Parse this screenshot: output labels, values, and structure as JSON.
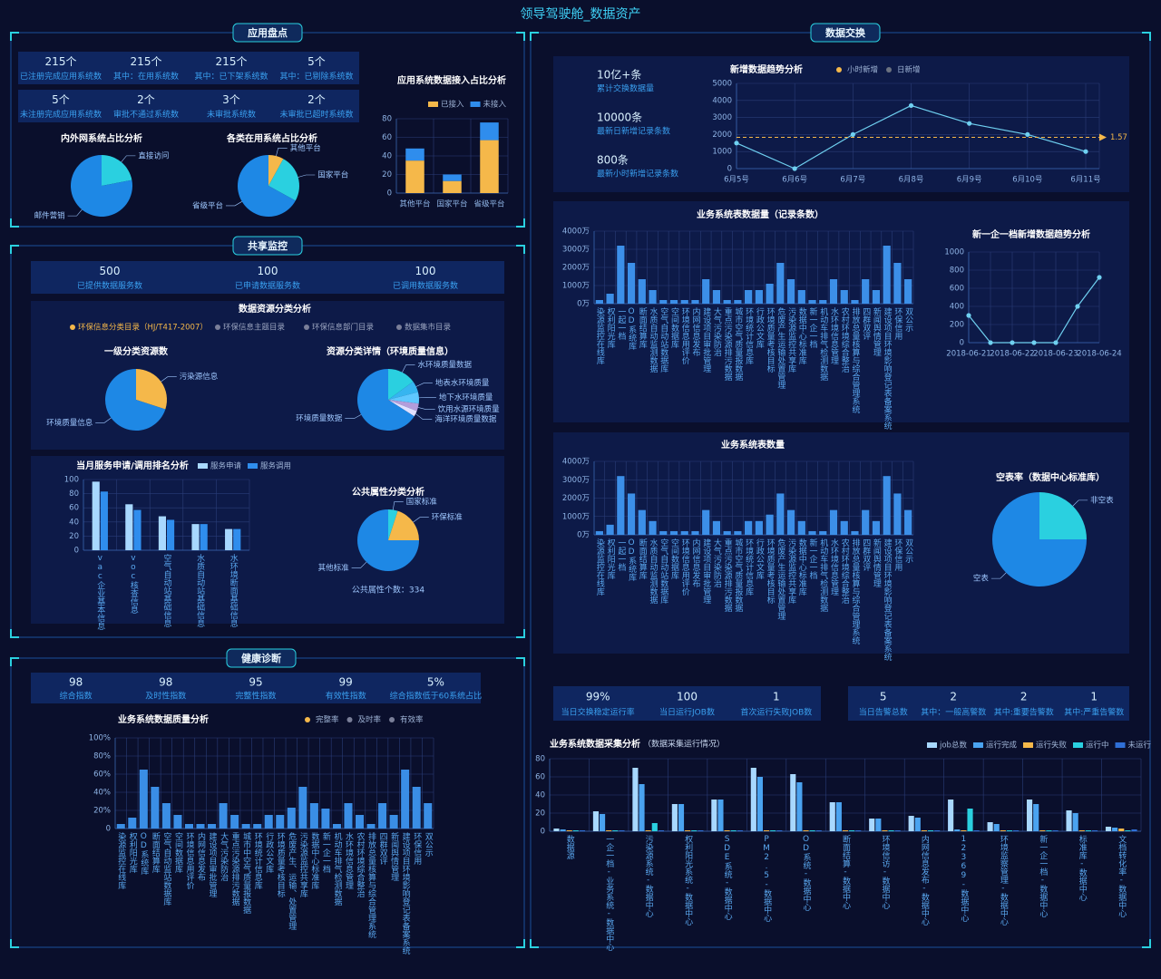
{
  "header": {
    "title": "领导驾驶舱_数据资产"
  },
  "sections": [
    {
      "title": "应用盘点"
    },
    {
      "title": "共享监控"
    },
    {
      "title": "健康诊断"
    },
    {
      "title": "数据交换"
    }
  ],
  "stats": [
    {
      "items": [
        {
          "value": "215个",
          "label": "已注册完成应用系统数"
        },
        {
          "value": "215个",
          "label": "其中：在用系统数"
        },
        {
          "value": "215个",
          "label": "其中：已下架系统数"
        },
        {
          "value": "5个",
          "label": "其中：已剔除系统数"
        }
      ]
    },
    {
      "items": [
        {
          "value": "5个",
          "label": "未注册完成应用系统数"
        },
        {
          "value": "2个",
          "label": "审批不通过系统数"
        },
        {
          "value": "3个",
          "label": "未审批系统数"
        },
        {
          "value": "2个",
          "label": "未审批已超时系统数"
        }
      ]
    },
    {
      "items": [
        {
          "value": "500",
          "label": "已提供数据服务数"
        },
        {
          "value": "100",
          "label": "已申请数据服务数"
        },
        {
          "value": "100",
          "label": "已调用数据服务数"
        }
      ]
    },
    {
      "items": [
        {
          "value": "98",
          "label": "综合指数"
        },
        {
          "value": "98",
          "label": "及时性指数"
        },
        {
          "value": "95",
          "label": "完整性指数"
        },
        {
          "value": "99",
          "label": "有效性指数"
        },
        {
          "value": "5%",
          "label": "综合指数低于60系统占比"
        }
      ]
    },
    {
      "items": [
        {
          "value": "10亿+条",
          "label": "累计交换数据量"
        },
        {
          "value": "10000条",
          "label": "最新日新增记录条数"
        },
        {
          "value": "800条",
          "label": "最新小时新增记录条数"
        }
      ]
    },
    {
      "items": [
        {
          "value": "99%",
          "label": "当日交换稳定运行率"
        },
        {
          "value": "100",
          "label": "当日运行JOB数"
        },
        {
          "value": "1",
          "label": "首次运行失败JOB数"
        }
      ]
    },
    {
      "items": [
        {
          "value": "5",
          "label": "当日告警总数"
        },
        {
          "value": "2",
          "label": "其中：一般高警数"
        },
        {
          "value": "2",
          "label": "其中:重要告警数"
        },
        {
          "value": "1",
          "label": "其中:严重告警数"
        }
      ]
    }
  ],
  "resource_panel": {
    "title": "数据资源分类分析",
    "tabs": [
      "环保信息分类目录（HJ/T417-2007）",
      "环保信息主题目录",
      "环保信息部门目录",
      "数据集市目录"
    ]
  },
  "chart_data": [
    {
      "type": "pie",
      "title": "内外网系统占比分析",
      "categories": [
        "直接访问",
        "邮件营销"
      ],
      "values": [
        22,
        78
      ],
      "colors": [
        "#2ad0e0",
        "#1e88e5"
      ]
    },
    {
      "type": "pie",
      "title": "各类在用系统占比分析",
      "categories": [
        "其他平台",
        "国家平台",
        "省级平台"
      ],
      "values": [
        8,
        25,
        67
      ],
      "colors": [
        "#f5b84a",
        "#2ad0e0",
        "#1e88e5"
      ]
    },
    {
      "type": "bar",
      "stacked": true,
      "title": "应用系统数据接入占比分析",
      "categories": [
        "其他平台",
        "国家平台",
        "省级平台"
      ],
      "series": [
        {
          "name": "已接入",
          "color": "#f5b84a",
          "values": [
            35,
            13,
            57
          ]
        },
        {
          "name": "未接入",
          "color": "#2f8ded",
          "values": [
            13,
            7,
            19
          ]
        }
      ],
      "ylim": [
        0,
        80
      ],
      "yticks": [
        0,
        20,
        40,
        60,
        80
      ],
      "grid": true
    },
    {
      "type": "pie",
      "title": "一级分类资源数",
      "categories": [
        "污染源信息",
        "环境质量信息"
      ],
      "values": [
        30,
        70
      ],
      "colors": [
        "#f5b84a",
        "#1e88e5"
      ]
    },
    {
      "type": "pie",
      "title": "资源分类详情（环境质量信息）",
      "categories": [
        "水环境质量数据",
        "地表水环境质量",
        "地下水环境质量",
        "饮用水源环境质量",
        "海洋环境质量数据",
        "环境质量数据"
      ],
      "values": [
        15,
        6,
        6,
        4,
        3,
        66
      ],
      "colors": [
        "#2ad0e0",
        "#36b5f0",
        "#5ec8ff",
        "#b39ddb",
        "#e0e0ff",
        "#1e88e5"
      ]
    },
    {
      "type": "bar",
      "title": "当月服务申请/调用排名分析",
      "categories": [
        "vac企业基本信息",
        "voc核查信息",
        "空气自动站基础信息",
        "水质自动站基础信息",
        "水环境断面基础信息"
      ],
      "series": [
        {
          "name": "服务申请",
          "color": "#a8d8ff",
          "values": [
            97,
            65,
            48,
            37,
            30
          ]
        },
        {
          "name": "服务调用",
          "color": "#2f8ded",
          "values": [
            83,
            57,
            43,
            37,
            30
          ]
        }
      ],
      "ylim": [
        0,
        100
      ],
      "yticks": [
        0,
        20,
        40,
        60,
        80,
        100
      ],
      "grid": true
    },
    {
      "type": "pie",
      "title": "公共属性分类分析",
      "categories": [
        "国家标准",
        "环保标准",
        "其他标准"
      ],
      "values": [
        5,
        20,
        75
      ],
      "colors": [
        "#2ad0e0",
        "#f5b84a",
        "#1e88e5"
      ],
      "annotation": "公共属性个数：334"
    },
    {
      "type": "bar",
      "title": "业务系统数据质量分析",
      "legend": [
        {
          "name": "完整率",
          "color": "#f5b84a"
        },
        {
          "name": "及时率",
          "color": "#7a7f99"
        },
        {
          "name": "有效率",
          "color": "#7a7f99"
        }
      ],
      "categories": [
        "染源监控在线库",
        "权利阳光库",
        "OD系统库",
        "断面结算库",
        "空气自动监站数据库",
        "空间数据库",
        "环境信息用评价",
        "内网信息发布",
        "建设项目审批管理",
        "大气污染防治",
        "重点污染源排污数据",
        "城市中空气质量报数据",
        "环境统计信息库",
        "行政公文库",
        "环境质量考核目标",
        "危废产生、运输、处置管理",
        "污染源监控共享库",
        "数据中心标准库",
        "新一企一档",
        "机动车排气检测数据",
        "水环境信息管理",
        "农村环境综合整治",
        "排放总量核算与综合管理系统",
        "四群双评",
        "新闻舆情管理",
        "建设项目环境影响登记表备案系统",
        "环保信用",
        "双公示"
      ],
      "values": [
        5,
        12,
        65,
        46,
        28,
        15,
        5,
        5,
        5,
        28,
        15,
        5,
        5,
        15,
        15,
        23,
        46,
        28,
        22,
        5,
        28,
        15,
        5,
        28,
        15,
        65,
        46,
        28
      ],
      "color": "#3a8ee6",
      "ylim": [
        0,
        100
      ],
      "yticks": [
        0,
        {
          "value": 20,
          "label": "20%"
        },
        {
          "value": 40,
          "label": "40%"
        },
        {
          "value": 60,
          "label": "60%"
        },
        {
          "value": 80,
          "label": "80%"
        },
        {
          "value": 100,
          "label": "100%"
        }
      ],
      "grid": true
    },
    {
      "type": "line",
      "title": "新增数据趋势分析",
      "legend": [
        {
          "name": "小时新增",
          "color": "#f5b84a"
        },
        {
          "name": "日新增",
          "color": "#6b7280"
        }
      ],
      "categories": [
        "6月5号",
        "6月6号",
        "6月7号",
        "6月8号",
        "6月9号",
        "6月10号",
        "6月11号"
      ],
      "values": [
        1500,
        0,
        2000,
        3700,
        2650,
        2000,
        1000
      ],
      "color": "#6fd0f0",
      "ylim": [
        0,
        5000
      ],
      "yticks": [
        0,
        1000,
        2000,
        3000,
        4000,
        5000
      ],
      "grid": true,
      "markline": {
        "label": "1.57",
        "color": "#f5b84a"
      }
    },
    {
      "type": "bar",
      "title": "业务系统表数据量（记录条数）",
      "categories": [
        "染源监控在线库",
        "权利阳光库",
        "一起一档",
        "OD系统库",
        "断面结算库",
        "水质自动监测数据",
        "空气自动站数据库",
        "空间数据库",
        "环境信息用评价",
        "内网信息发布",
        "建设项目审批管理",
        "大气污染防治",
        "重点污染源排污数据",
        "城市空气质量报数据",
        "环境统计信息库",
        "行政公文库",
        "环境质量考核目标",
        "危废产生运输处置管理",
        "污染源监控共享库",
        "数据中心标准库",
        "新一企一档",
        "机动车排气检测数据",
        "水环境信息管理",
        "农村环境综合整治",
        "排放总量核算与综合管理系统",
        "四群双评",
        "新闻舆情管理",
        "建设项目环境影响登记表备案系统",
        "环保信用",
        "双公示"
      ],
      "values": [
        200,
        550,
        3200,
        2250,
        1350,
        750,
        200,
        200,
        200,
        200,
        1350,
        750,
        200,
        200,
        750,
        750,
        1100,
        2250,
        1350,
        750,
        200,
        200,
        1350,
        750,
        200,
        1350,
        750,
        3200,
        2250,
        1350
      ],
      "color": "#3c8fe8",
      "ylim": [
        0,
        4000
      ],
      "yticks": [
        {
          "value": 0,
          "label": "0万"
        },
        {
          "value": 1000,
          "label": "1000万"
        },
        {
          "value": 2000,
          "label": "2000万"
        },
        {
          "value": 3000,
          "label": "3000万"
        },
        {
          "value": 4000,
          "label": "4000万"
        }
      ],
      "grid": true
    },
    {
      "type": "line",
      "title": "新一企一档新增数据趋势分析",
      "categories": [
        "2018-06-21",
        null,
        "2018-06-22",
        null,
        "2018-06-23",
        null,
        "2018-06-24"
      ],
      "values": [
        300,
        0,
        0,
        0,
        0,
        400,
        720
      ],
      "color": "#6fd0f0",
      "ylim": [
        0,
        1000
      ],
      "yticks": [
        0,
        200,
        400,
        600,
        800,
        1000
      ],
      "grid": true
    },
    {
      "type": "bar",
      "title": "业务系统表数量",
      "categories": [
        "染源监控在线库",
        "权利阳光库",
        "一起一档",
        "OD系统库",
        "断面结算库",
        "水质自动监测数据",
        "空气自动站数据库",
        "空间数据库",
        "环境信息用评价",
        "内网信息发布",
        "建设项目审批管理",
        "大气污染防治",
        "重点污染源排污数据",
        "城市空气质量报数据",
        "环境统计信息库",
        "行政公文库",
        "环境质量考核目标",
        "危废产生运输处置管理",
        "污染源监控共享库",
        "数据中心标准库",
        "新一企一档",
        "机动车排气检测数据",
        "水环境信息管理",
        "农村环境综合整治",
        "排放总量核算与综合管理系统",
        "四群双评",
        "新闻舆情管理",
        "建设项目环境影响登记表备案系统",
        "环保信用",
        "双公示"
      ],
      "values": [
        200,
        550,
        3200,
        2250,
        1350,
        750,
        200,
        200,
        200,
        200,
        1350,
        750,
        200,
        200,
        750,
        750,
        1100,
        2250,
        1350,
        750,
        200,
        200,
        1350,
        750,
        200,
        1350,
        750,
        3200,
        2250,
        1350
      ],
      "color": "#3c8fe8",
      "ylim": [
        0,
        4000
      ],
      "yticks": [
        {
          "value": 0,
          "label": "0万"
        },
        {
          "value": 1000,
          "label": "1000万"
        },
        {
          "value": 2000,
          "label": "2000万"
        },
        {
          "value": 3000,
          "label": "3000万"
        },
        {
          "value": 4000,
          "label": "4000万"
        }
      ],
      "grid": true
    },
    {
      "type": "pie",
      "title": "空表率（数据中心标准库）",
      "categories": [
        "非空表",
        "空表"
      ],
      "values": [
        25,
        75
      ],
      "colors": [
        "#2ad0e0",
        "#1e88e5"
      ]
    },
    {
      "type": "bar",
      "title": "业务系统数据采集分析",
      "subtitle": "（数据采集运行情况）",
      "categories": [
        "数据源",
        "一企一档-业务系统-数据中心",
        "污染源系统-数据中心",
        "权利阳光系统-数据中心",
        "SDE系统-数据中心",
        "PM2.5-数据中心",
        "OD系统-数据中心",
        "断面结算-数据中心",
        "环境信访-数据中心",
        "内网信息发布-数据中心",
        "12369-数据中心",
        "环境监察管理-数据中心",
        "新一企一档-数据中心",
        "标准库-数据中心",
        "文档转化率-数据中心"
      ],
      "series": [
        {
          "name": "job总数",
          "color": "#a8d8ff",
          "values": [
            3,
            22,
            70,
            30,
            35,
            70,
            63,
            32,
            14,
            17,
            35,
            10,
            35,
            23,
            5
          ]
        },
        {
          "name": "运行完成",
          "color": "#4aa3f0",
          "values": [
            2,
            19,
            52,
            30,
            35,
            60,
            54,
            32,
            14,
            15,
            2,
            8,
            30,
            20,
            4
          ]
        },
        {
          "name": "运行失败",
          "color": "#f5b84a",
          "values": [
            1,
            1,
            1,
            1,
            1,
            1,
            1,
            1,
            1,
            1,
            1,
            1,
            1,
            1,
            3
          ]
        },
        {
          "name": "运行中",
          "color": "#2ad0e0",
          "values": [
            1,
            1,
            9,
            1,
            1,
            1,
            1,
            1,
            1,
            1,
            25,
            1,
            1,
            1,
            1
          ]
        },
        {
          "name": "未运行",
          "color": "#2f6fd6",
          "values": [
            1,
            1,
            1,
            1,
            1,
            1,
            1,
            1,
            1,
            1,
            1,
            1,
            1,
            1,
            2
          ]
        }
      ],
      "ylim": [
        0,
        80
      ],
      "yticks": [
        0,
        20,
        40,
        60,
        80
      ],
      "grid": true
    }
  ]
}
